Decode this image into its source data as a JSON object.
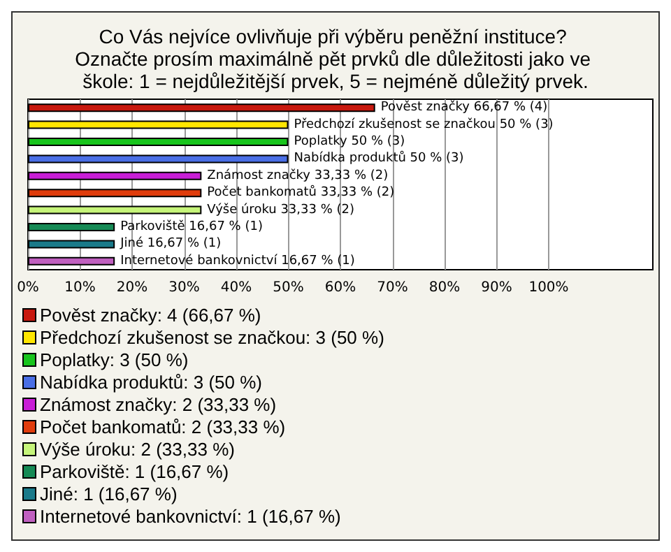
{
  "chart_data": {
    "type": "bar",
    "orientation": "horizontal",
    "title": "Co Vás nejvíce ovlivňuje při výběru peněžní instituce? Označte prosím maximálně pět prvků dle důležitosti jako ve škole: 1 = nejdůležitější prvek, 5 = nejméně důležitý prvek.",
    "categories": [
      null,
      null,
      null,
      null,
      null,
      null,
      null,
      null,
      null,
      null
    ],
    "series": [
      {
        "name": "Pověst značky: 4 (66,67 %)",
        "color": "#c8190f",
        "values": [
          66.67,
          null,
          null,
          null,
          null,
          null,
          null,
          null,
          null,
          null
        ],
        "value_labels": [
          "Pověst značky 66,67 % (4)",
          null,
          null,
          null,
          null,
          null,
          null,
          null,
          null,
          null
        ]
      },
      {
        "name": "Předchozí zkušenost se značkou: 3 (50 %)",
        "color": "#ffe600",
        "values": [
          null,
          50,
          null,
          null,
          null,
          null,
          null,
          null,
          null,
          null
        ],
        "value_labels": [
          null,
          "Předchozí zkušenost se značkou 50 % (3)",
          null,
          null,
          null,
          null,
          null,
          null,
          null,
          null
        ]
      },
      {
        "name": "Poplatky: 3 (50 %)",
        "color": "#18c41c",
        "values": [
          null,
          null,
          50,
          null,
          null,
          null,
          null,
          null,
          null,
          null
        ],
        "value_labels": [
          null,
          null,
          "Poplatky 50 % (3)",
          null,
          null,
          null,
          null,
          null,
          null,
          null
        ]
      },
      {
        "name": "Nabídka produktů: 3 (50 %)",
        "color": "#4a6fe6",
        "values": [
          null,
          null,
          null,
          50,
          null,
          null,
          null,
          null,
          null,
          null
        ],
        "value_labels": [
          null,
          null,
          null,
          "Nabídka produktů 50 % (3)",
          null,
          null,
          null,
          null,
          null,
          null
        ]
      },
      {
        "name": "Známost značky: 2 (33,33 %)",
        "color": "#c81ed6",
        "values": [
          null,
          null,
          null,
          null,
          33.33,
          null,
          null,
          null,
          null,
          null
        ],
        "value_labels": [
          null,
          null,
          null,
          null,
          "Známost značky 33,33 % (2)",
          null,
          null,
          null,
          null,
          null
        ]
      },
      {
        "name": "Počet bankomatů: 2 (33,33 %)",
        "color": "#e03c0c",
        "values": [
          null,
          null,
          null,
          null,
          null,
          33.33,
          null,
          null,
          null,
          null
        ],
        "value_labels": [
          null,
          null,
          null,
          null,
          null,
          "Počet bankomatů 33,33 % (2)",
          null,
          null,
          null,
          null
        ]
      },
      {
        "name": "Výše úroku: 2 (33,33 %)",
        "color": "#c6f57a",
        "values": [
          null,
          null,
          null,
          null,
          null,
          null,
          33.33,
          null,
          null,
          null
        ],
        "value_labels": [
          null,
          null,
          null,
          null,
          null,
          null,
          "Výše úroku 33,33 % (2)",
          null,
          null,
          null
        ]
      },
      {
        "name": "Parkoviště: 1 (16,67 %)",
        "color": "#168a55",
        "values": [
          null,
          null,
          null,
          null,
          null,
          null,
          null,
          16.67,
          null,
          null
        ],
        "value_labels": [
          null,
          null,
          null,
          null,
          null,
          null,
          null,
          "Parkoviště 16,67 % (1)",
          null,
          null
        ]
      },
      {
        "name": "Jiné: 1 (16,67 %)",
        "color": "#1a7a8a",
        "values": [
          null,
          null,
          null,
          null,
          null,
          null,
          null,
          null,
          16.67,
          null
        ],
        "value_labels": [
          null,
          null,
          null,
          null,
          null,
          null,
          null,
          null,
          "Jiné 16,67 % (1)",
          null
        ]
      },
      {
        "name": "Internetové bankovnictví: 1 (16,67 %)",
        "color": "#c060c0",
        "values": [
          null,
          null,
          null,
          null,
          null,
          null,
          null,
          null,
          null,
          16.67
        ],
        "value_labels": [
          null,
          null,
          null,
          null,
          null,
          null,
          null,
          null,
          null,
          "Internetové bankovnictví 16,67 % (1)"
        ]
      }
    ],
    "xlim": [
      0,
      120
    ],
    "xticks": [
      {
        "value": 0,
        "label": "0%"
      },
      {
        "value": 10,
        "label": "10%"
      },
      {
        "value": 20,
        "label": "20%"
      },
      {
        "value": 30,
        "label": "30%"
      },
      {
        "value": 40,
        "label": "40%"
      },
      {
        "value": 50,
        "label": "50%"
      },
      {
        "value": 60,
        "label": "60%"
      },
      {
        "value": 70,
        "label": "70%"
      },
      {
        "value": 80,
        "label": "80%"
      },
      {
        "value": 90,
        "label": "90%"
      },
      {
        "value": 100,
        "label": "100%"
      }
    ],
    "grid": "x",
    "legend": "bottom"
  }
}
